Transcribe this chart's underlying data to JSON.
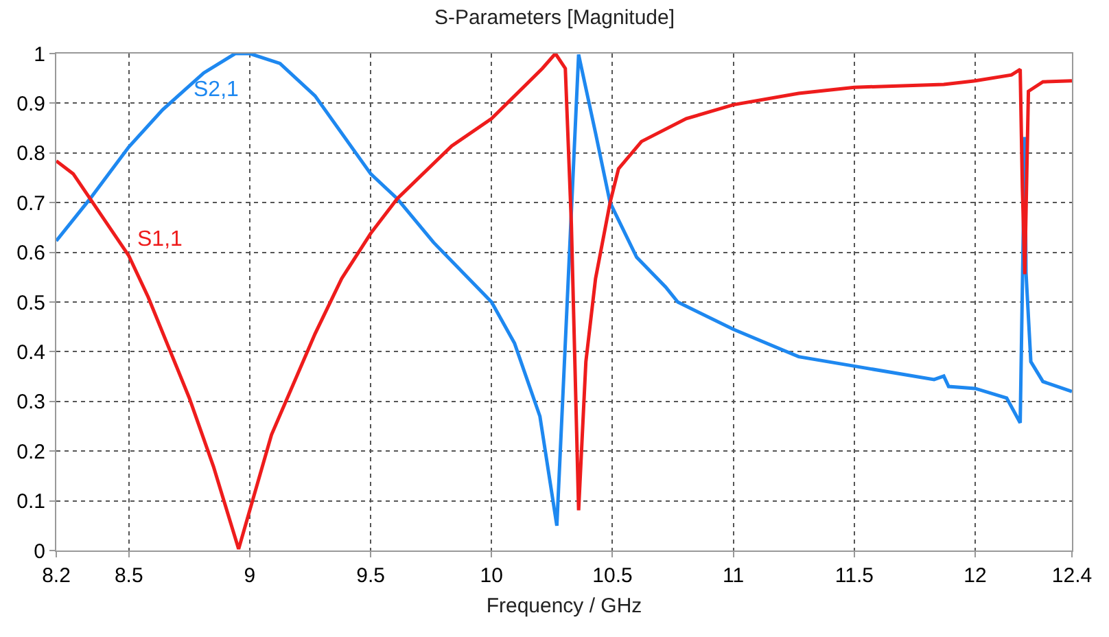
{
  "chart_data": {
    "type": "line",
    "title": "S-Parameters [Magnitude]",
    "xlabel": "Frequency / GHz",
    "xlim": [
      8.2,
      12.4
    ],
    "xticks": [
      8.2,
      8.5,
      9,
      9.5,
      10,
      10.5,
      11,
      11.5,
      12,
      12.4
    ],
    "ylim": [
      0,
      1
    ],
    "yticks": [
      0,
      0.1,
      0.2,
      0.3,
      0.4,
      0.5,
      0.6,
      0.7,
      0.8,
      0.9,
      1
    ],
    "grid": true,
    "legend": false,
    "marker": "none",
    "line_style": "solid",
    "series": [
      {
        "name": "S2,1",
        "color": "#1e88f0",
        "x": [
          8.2,
          8.34,
          8.5,
          8.64,
          8.81,
          8.94,
          9.0,
          9.125,
          9.27,
          9.5,
          9.61,
          9.76,
          10.0,
          10.095,
          10.2,
          10.27,
          10.31,
          10.36,
          10.43,
          10.49,
          10.6,
          10.72,
          10.77,
          11.0,
          11.27,
          11.5,
          11.83,
          11.87,
          11.89,
          12.0,
          12.13,
          12.186,
          12.205,
          12.21,
          12.23,
          12.28,
          12.4
        ],
        "values": [
          0.623,
          0.708,
          0.812,
          0.887,
          0.961,
          1.0,
          1.0,
          0.98,
          0.915,
          0.758,
          0.708,
          0.62,
          0.5,
          0.417,
          0.27,
          0.05,
          0.47,
          0.998,
          0.84,
          0.7,
          0.59,
          0.53,
          0.5,
          0.445,
          0.39,
          0.371,
          0.344,
          0.351,
          0.33,
          0.326,
          0.307,
          0.257,
          0.832,
          0.56,
          0.38,
          0.34,
          0.32
        ]
      },
      {
        "name": "S1,1",
        "color": "#ee1c1c",
        "x": [
          8.2,
          8.27,
          8.5,
          8.58,
          8.75,
          8.85,
          8.954,
          9.09,
          9.27,
          9.38,
          9.5,
          9.61,
          9.835,
          10.0,
          10.21,
          10.264,
          10.305,
          10.33,
          10.36,
          10.39,
          10.43,
          10.49,
          10.525,
          10.62,
          10.805,
          11.0,
          11.27,
          11.5,
          11.87,
          12.0,
          12.15,
          12.186,
          12.195,
          12.205,
          12.22,
          12.28,
          12.4
        ],
        "values": [
          0.784,
          0.758,
          0.593,
          0.51,
          0.307,
          0.169,
          0.003,
          0.233,
          0.436,
          0.547,
          0.638,
          0.708,
          0.814,
          0.869,
          0.97,
          1.0,
          0.97,
          0.657,
          0.081,
          0.38,
          0.547,
          0.7,
          0.768,
          0.823,
          0.869,
          0.897,
          0.92,
          0.932,
          0.938,
          0.945,
          0.957,
          0.968,
          0.73,
          0.556,
          0.924,
          0.943,
          0.945
        ]
      }
    ]
  }
}
